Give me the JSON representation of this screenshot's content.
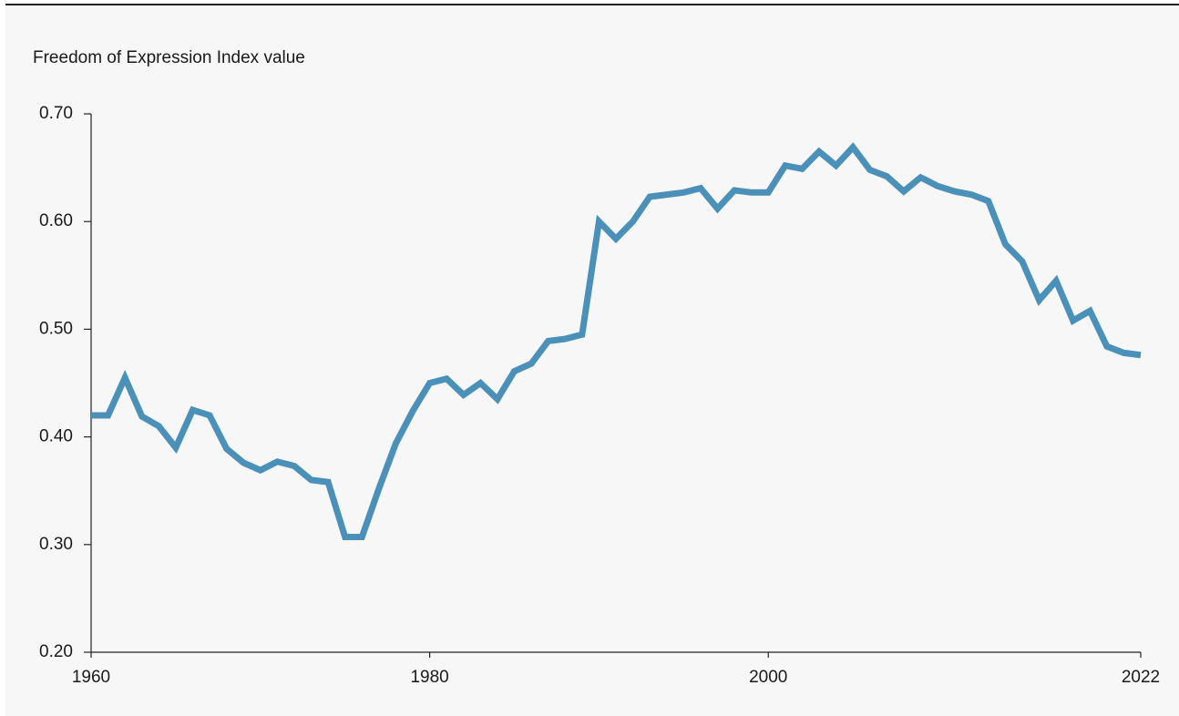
{
  "chart_data": {
    "type": "line",
    "y_label": "Freedom of Expression Index value",
    "x": [
      1960,
      1961,
      1962,
      1963,
      1964,
      1965,
      1966,
      1967,
      1968,
      1969,
      1970,
      1971,
      1972,
      1973,
      1974,
      1975,
      1976,
      1977,
      1978,
      1979,
      1980,
      1981,
      1982,
      1983,
      1984,
      1985,
      1986,
      1987,
      1988,
      1989,
      1990,
      1991,
      1992,
      1993,
      1994,
      1995,
      1996,
      1997,
      1998,
      1999,
      2000,
      2001,
      2002,
      2003,
      2004,
      2005,
      2006,
      2007,
      2008,
      2009,
      2010,
      2011,
      2012,
      2013,
      2014,
      2015,
      2016,
      2017,
      2018,
      2019,
      2020,
      2021,
      2022
    ],
    "series": [
      {
        "name": "Freedom of Expression Index",
        "color": "#4a90b8",
        "values": [
          0.42,
          0.42,
          0.455,
          0.419,
          0.41,
          0.39,
          0.425,
          0.42,
          0.389,
          0.376,
          0.369,
          0.377,
          0.373,
          0.36,
          0.358,
          0.307,
          0.307,
          0.352,
          0.394,
          0.424,
          0.45,
          0.454,
          0.439,
          0.45,
          0.435,
          0.461,
          0.468,
          0.489,
          0.491,
          0.495,
          0.6,
          0.584,
          0.6,
          0.623,
          0.625,
          0.627,
          0.631,
          0.612,
          0.629,
          0.627,
          0.627,
          0.652,
          0.649,
          0.665,
          0.652,
          0.669,
          0.648,
          0.642,
          0.628,
          0.641,
          0.633,
          0.628,
          0.625,
          0.619,
          0.579,
          0.563,
          0.527,
          0.545,
          0.508,
          0.517,
          0.484,
          0.478,
          0.476
        ]
      }
    ],
    "xlim": [
      1960,
      2022
    ],
    "xticks": [
      1960,
      1980,
      2000,
      2022
    ],
    "ylim": [
      0.2,
      0.7
    ],
    "yticks": [
      {
        "value": 0.2,
        "label": "0.20"
      },
      {
        "value": 0.3,
        "label": "0.30"
      },
      {
        "value": 0.4,
        "label": "0.40"
      },
      {
        "value": 0.5,
        "label": "0.50"
      },
      {
        "value": 0.6,
        "label": "0.60"
      },
      {
        "value": 0.7,
        "label": "0.70"
      }
    ]
  }
}
